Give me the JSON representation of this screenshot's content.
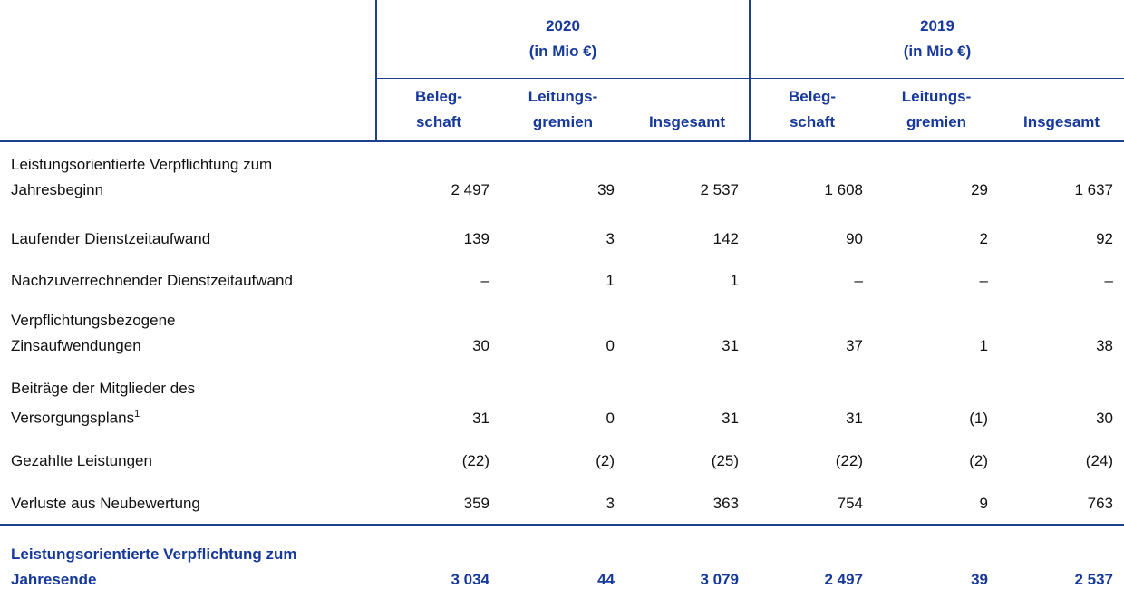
{
  "table": {
    "groups": [
      {
        "year": "2020",
        "unit": "(in Mio €)"
      },
      {
        "year": "2019",
        "unit": "(in Mio €)"
      }
    ],
    "columns": [
      [
        "Beleg-",
        "schaft"
      ],
      [
        "Leitungs-",
        "gremien"
      ],
      [
        "Insgesamt"
      ],
      [
        "Beleg-",
        "schaft"
      ],
      [
        "Leitungs-",
        "gremien"
      ],
      [
        "Insgesamt"
      ]
    ],
    "rows": [
      {
        "label": [
          "Leistungsorientierte Verpflichtung zum",
          "Jahresbeginn"
        ],
        "values": [
          "2 497",
          "39",
          "2 537",
          "1 608",
          "29",
          "1 637"
        ]
      },
      {
        "label": [
          "Laufender Dienstzeitaufwand"
        ],
        "values": [
          "139",
          "3",
          "142",
          "90",
          "2",
          "92"
        ]
      },
      {
        "label": [
          "Nachzuverrechnender Dienstzeitaufwand"
        ],
        "values": [
          "–",
          "1",
          "1",
          "–",
          "–",
          "–"
        ]
      },
      {
        "label": [
          "Verpflichtungsbezogene",
          "Zinsaufwendungen"
        ],
        "values": [
          "30",
          "0",
          "31",
          "37",
          "1",
          "38"
        ]
      },
      {
        "label": [
          "Beiträge der Mitglieder des",
          "Versorgungsplans"
        ],
        "footnote": "1",
        "values": [
          "31",
          "0",
          "31",
          "31",
          "(1)",
          "30"
        ]
      },
      {
        "label": [
          "Gezahlte Leistungen"
        ],
        "values": [
          "(22)",
          "(2)",
          "(25)",
          "(22)",
          "(2)",
          "(24)"
        ]
      },
      {
        "label": [
          "Verluste aus Neubewertung"
        ],
        "values": [
          "359",
          "3",
          "363",
          "754",
          "9",
          "763"
        ]
      }
    ],
    "total": {
      "label": [
        "Leistungsorientierte Verpflichtung zum",
        "Jahresende"
      ],
      "values": [
        "3 034",
        "44",
        "3 079",
        "2 497",
        "39",
        "2 537"
      ]
    }
  }
}
